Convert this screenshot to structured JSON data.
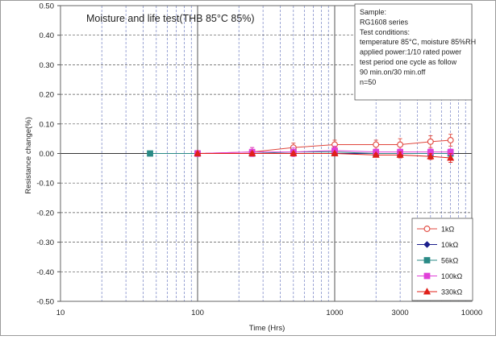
{
  "chart_data": {
    "type": "line",
    "title": "Moisture and life test(THB 85°C 85%)",
    "xlabel": "Time (Hrs)",
    "ylabel": "Resistance change(%)",
    "x_scale": "log",
    "xlim": [
      10,
      10000
    ],
    "ylim": [
      -0.5,
      0.5
    ],
    "x_tick_values": [
      10,
      100,
      1000,
      3000,
      10000
    ],
    "x_tick_labels": [
      "10",
      "100",
      "1000",
      "3000",
      "10000"
    ],
    "y_tick_values": [
      0.5,
      0.4,
      0.3,
      0.2,
      0.1,
      0.0,
      -0.1,
      -0.2,
      -0.3,
      -0.4,
      -0.5
    ],
    "y_tick_labels": [
      "0.50",
      "0.40",
      "0.30",
      "0.20",
      "0.10",
      "0.00",
      "-0.10",
      "-0.20",
      "-0.30",
      "-0.40",
      "-0.50"
    ],
    "grid": true,
    "legend_position": "bottom-right",
    "annotation_lines": [
      "Sample:",
      "RG1608 series",
      "Test conditions:",
      "temperature 85°C, moisture 85%RH",
      "applied power:1/10 rated power",
      "test period one cycle as follow",
      "90 min.on/30 min.off",
      "n=50"
    ],
    "series": [
      {
        "name": "1kΩ",
        "color": "#e0463c",
        "marker": "circle-open",
        "x": [
          100,
          250,
          500,
          1000,
          2000,
          3000,
          5000,
          7000
        ],
        "y": [
          0.0,
          0.005,
          0.02,
          0.03,
          0.03,
          0.03,
          0.04,
          0.045
        ],
        "err": [
          0.01,
          0.015,
          0.015,
          0.015,
          0.015,
          0.02,
          0.02,
          0.02
        ]
      },
      {
        "name": "10kΩ",
        "color": "#1c1f8c",
        "marker": "diamond",
        "x": [
          100,
          250,
          500,
          1000,
          2000,
          3000,
          5000,
          7000
        ],
        "y": [
          0.0,
          0.0,
          0.0,
          0.0,
          0.0,
          0.0,
          0.0,
          0.0
        ],
        "err": [
          0.005,
          0.005,
          0.005,
          0.005,
          0.005,
          0.005,
          0.005,
          0.005
        ]
      },
      {
        "name": "56kΩ",
        "color": "#2a8a86",
        "marker": "square",
        "x": [
          45,
          100,
          250,
          500,
          1000,
          2000,
          3000,
          5000,
          7000
        ],
        "y": [
          0.0,
          0.0,
          0.0,
          0.005,
          0.005,
          0.0,
          0.0,
          0.0,
          0.0
        ],
        "err": [
          0,
          0.005,
          0.005,
          0.005,
          0.005,
          0.005,
          0.005,
          0.005,
          0.005
        ]
      },
      {
        "name": "100kΩ",
        "color": "#e040d8",
        "marker": "square",
        "x": [
          100,
          250,
          500,
          1000,
          2000,
          3000,
          5000,
          7000
        ],
        "y": [
          0.0,
          0.005,
          0.005,
          0.01,
          0.005,
          0.005,
          0.005,
          0.005
        ],
        "err": [
          0.01,
          0.015,
          0.015,
          0.015,
          0.01,
          0.01,
          0.01,
          0.01
        ]
      },
      {
        "name": "330kΩ",
        "color": "#e0201a",
        "marker": "triangle",
        "x": [
          100,
          250,
          500,
          1000,
          2000,
          3000,
          5000,
          7000
        ],
        "y": [
          0.0,
          0.0,
          0.0,
          0.0,
          -0.005,
          -0.005,
          -0.01,
          -0.015
        ],
        "err": [
          0.005,
          0.005,
          0.005,
          0.005,
          0.005,
          0.01,
          0.01,
          0.015
        ]
      }
    ]
  }
}
